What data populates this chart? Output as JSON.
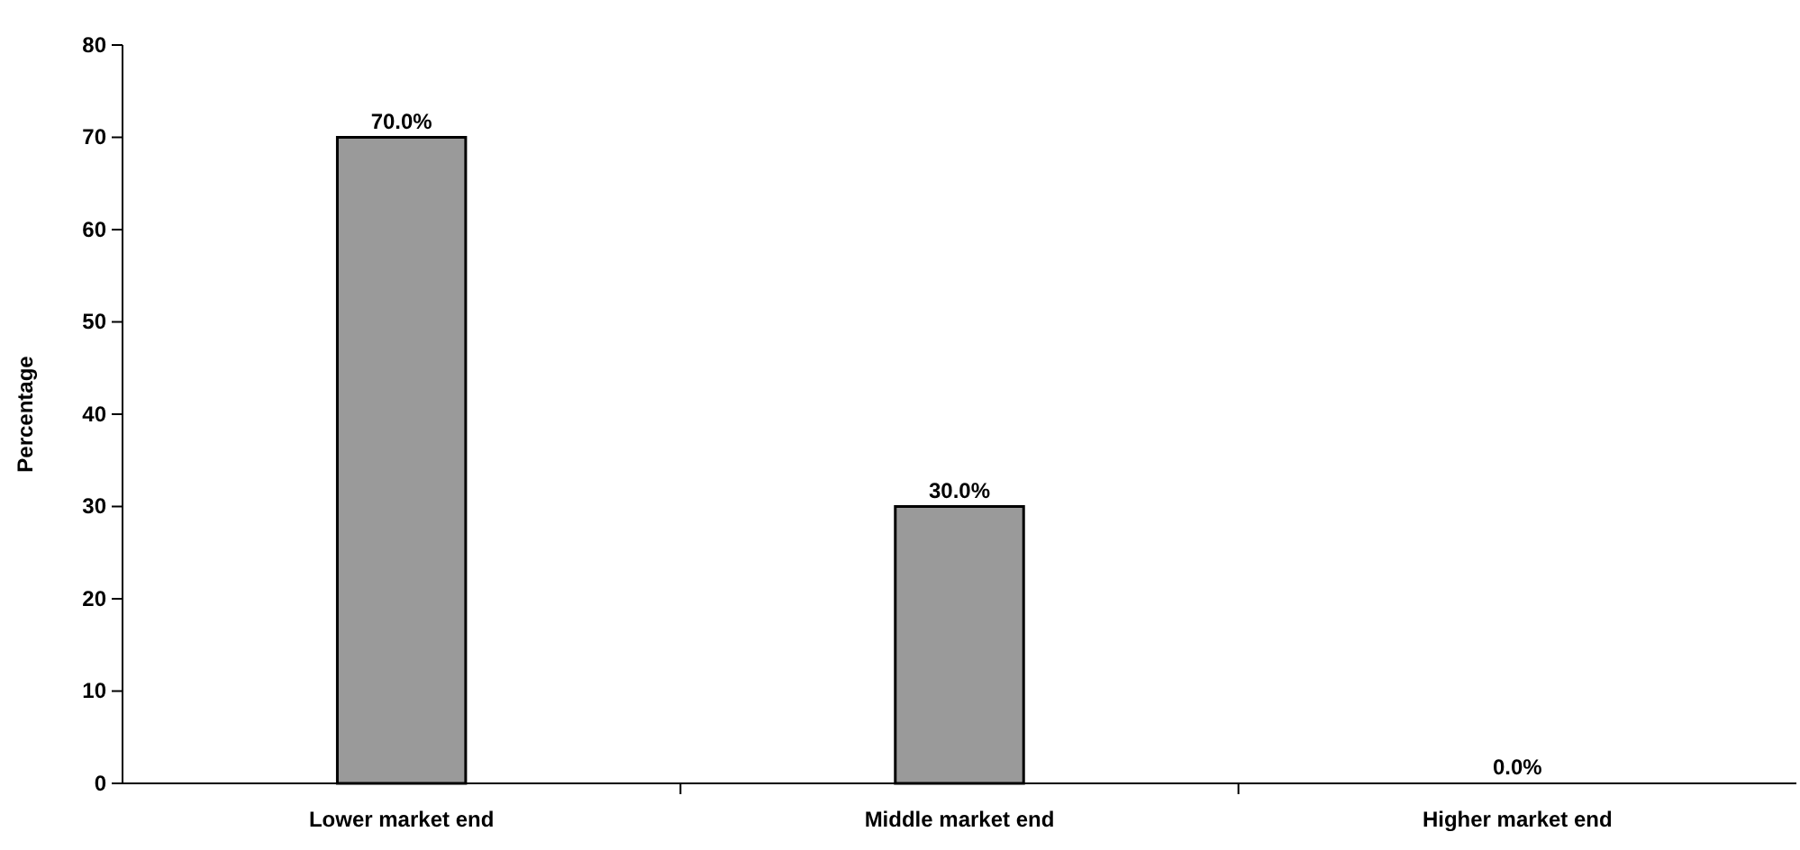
{
  "chart_data": {
    "type": "bar",
    "ylabel": "Percentage",
    "categories": [
      "Lower market end",
      "Middle market end",
      "Higher market end"
    ],
    "values": [
      70.0,
      30.0,
      0.0
    ],
    "value_labels": [
      "70.0%",
      "30.0%",
      "0.0%"
    ],
    "color": "#9a9a9a",
    "ylim": [
      0,
      80
    ],
    "yticks": [
      0,
      10,
      20,
      30,
      40,
      50,
      60,
      70,
      80
    ],
    "grid": false
  }
}
